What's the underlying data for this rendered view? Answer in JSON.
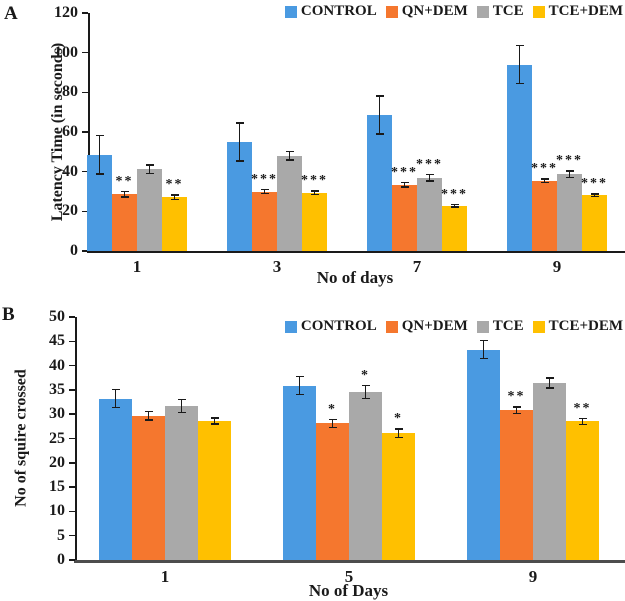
{
  "figure": {
    "panel_a_tag": "A",
    "panel_b_tag": "B"
  },
  "colors": {
    "control": "#4A9AE1",
    "qn_dem": "#F5772E",
    "tce": "#A9A9A9",
    "tce_dem": "#FFC000",
    "axis": "#1a1a1a",
    "baseline_b": "#4d4d4d"
  },
  "chart_data": [
    {
      "id": "A",
      "type": "bar",
      "title": "",
      "xlabel": "No of days",
      "ylabel": "Latency Time (in seconds)",
      "ylim": [
        0,
        120
      ],
      "yticks": [
        0,
        20,
        40,
        60,
        80,
        100,
        120
      ],
      "categories": [
        "1",
        "3",
        "7",
        "9"
      ],
      "grid": false,
      "legend_position": "top-right",
      "legend": [
        "CONTROL",
        "QN+DEM",
        "TCE",
        "TCE+DEM"
      ],
      "series": [
        {
          "name": "CONTROL",
          "color_key": "control",
          "values": [
            48.5,
            55,
            68.5,
            94
          ],
          "errors": [
            10,
            10,
            10,
            10
          ],
          "sig": [
            "",
            "",
            "",
            ""
          ]
        },
        {
          "name": "QN+DEM",
          "color_key": "qn_dem",
          "values": [
            28.7,
            30,
            33.5,
            35.5
          ],
          "errors": [
            1.8,
            1.5,
            1.5,
            1.3
          ],
          "sig": [
            "**",
            "***",
            "***",
            "***"
          ]
        },
        {
          "name": "TCE",
          "color_key": "tce",
          "values": [
            41.3,
            48,
            37,
            38.7
          ],
          "errors": [
            2.5,
            2.5,
            2,
            2
          ],
          "sig": [
            "",
            "",
            "***",
            "***"
          ]
        },
        {
          "name": "TCE+DEM",
          "color_key": "tce_dem",
          "values": [
            27.2,
            29.3,
            22.7,
            28
          ],
          "errors": [
            1.5,
            1.3,
            1,
            1
          ],
          "sig": [
            "**",
            "***",
            "***",
            "***"
          ]
        }
      ]
    },
    {
      "id": "B",
      "type": "bar",
      "title": "",
      "xlabel": "No of Days",
      "ylabel": "No of squire crossed",
      "ylim": [
        0,
        50
      ],
      "yticks": [
        0,
        5,
        10,
        15,
        20,
        25,
        30,
        35,
        40,
        45,
        50
      ],
      "categories": [
        "1",
        "5",
        "9"
      ],
      "grid": false,
      "legend_position": "top-right-inside",
      "legend": [
        "CONTROL",
        "QN+DEM",
        "TCE",
        "TCE+DEM"
      ],
      "series": [
        {
          "name": "CONTROL",
          "color_key": "control",
          "values": [
            33.2,
            35.9,
            43.3
          ],
          "errors": [
            2,
            2,
            2
          ],
          "sig": [
            "",
            "",
            ""
          ]
        },
        {
          "name": "QN+DEM",
          "color_key": "qn_dem",
          "values": [
            29.7,
            28.1,
            30.8
          ],
          "errors": [
            1,
            1,
            0.8
          ],
          "sig": [
            "",
            "*",
            "**"
          ]
        },
        {
          "name": "TCE",
          "color_key": "tce",
          "values": [
            31.7,
            34.6,
            36.4
          ],
          "errors": [
            1.5,
            1.5,
            1.2
          ],
          "sig": [
            "",
            "*",
            ""
          ]
        },
        {
          "name": "TCE+DEM",
          "color_key": "tce_dem",
          "values": [
            28.6,
            26.1,
            28.5
          ],
          "errors": [
            0.8,
            1,
            0.8
          ],
          "sig": [
            "",
            "*",
            "**"
          ]
        }
      ]
    }
  ]
}
